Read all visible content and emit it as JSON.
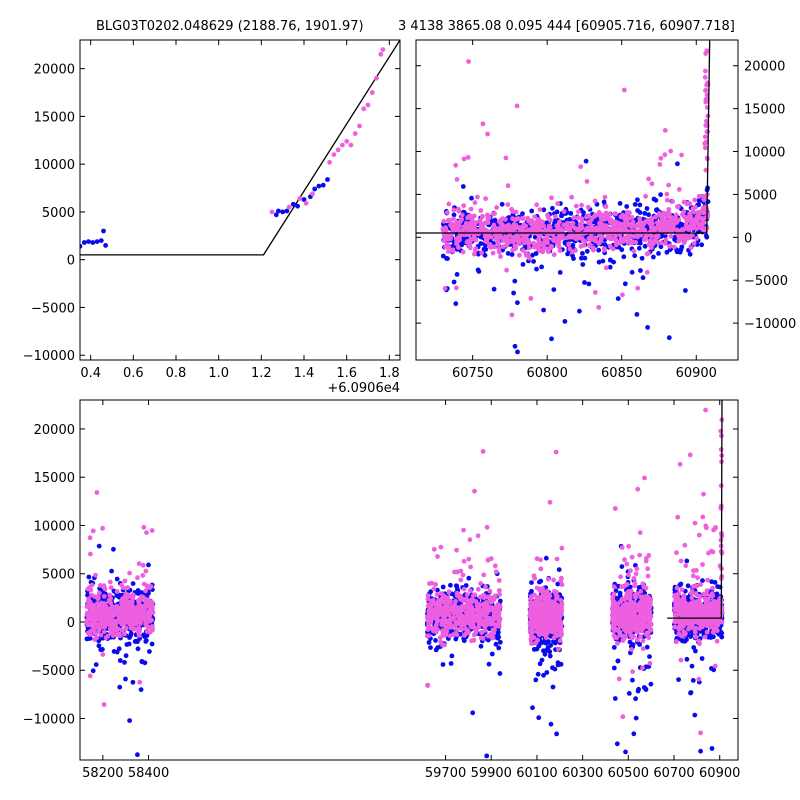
{
  "header": {
    "title_left": "BLG03T0202.048629 (2188.76, 1901.97)",
    "title_right": "3 4138 3865.08 0.095 444 [60905.716, 60907.718]"
  },
  "colors": {
    "series_a": "#0a0aee",
    "series_b": "#ee5fe0",
    "model": "#000000"
  },
  "chart_data": [
    {
      "type": "scatter",
      "name": "zoom-panel",
      "x_offset_label": "+6.0906e4",
      "xlim": [
        0.35,
        1.85
      ],
      "ylim": [
        -10500,
        23000
      ],
      "xticks": [
        0.4,
        0.6,
        0.8,
        1.0,
        1.2,
        1.4,
        1.6,
        1.8
      ],
      "xtick_labels": [
        "0.4",
        "0.6",
        "0.8",
        "1.0",
        "1.2",
        "1.4",
        "1.6",
        "1.8"
      ],
      "yticks": [
        -10000,
        -5000,
        0,
        5000,
        10000,
        15000,
        20000
      ],
      "ytick_labels": [
        "−10000",
        "−5000",
        "0",
        "5000",
        "10000",
        "15000",
        "20000"
      ],
      "series": [
        {
          "color_key": "series_a",
          "points": [
            [
              0.35,
              1400
            ],
            [
              0.37,
              1800
            ],
            [
              0.39,
              1900
            ],
            [
              0.41,
              1800
            ],
            [
              0.43,
              1900
            ],
            [
              0.45,
              2000
            ],
            [
              0.46,
              3000
            ],
            [
              0.47,
              1500
            ],
            [
              1.27,
              4700
            ],
            [
              1.28,
              5100
            ],
            [
              1.3,
              5000
            ],
            [
              1.32,
              5100
            ],
            [
              1.35,
              5800
            ],
            [
              1.37,
              5600
            ],
            [
              1.4,
              6300
            ],
            [
              1.43,
              6600
            ],
            [
              1.45,
              7400
            ],
            [
              1.47,
              7700
            ],
            [
              1.49,
              7800
            ],
            [
              1.51,
              8400
            ]
          ]
        },
        {
          "color_key": "series_b",
          "points": [
            [
              1.25,
              5000
            ],
            [
              1.33,
              5500
            ],
            [
              1.38,
              6400
            ],
            [
              1.41,
              5900
            ],
            [
              1.44,
              6900
            ],
            [
              1.52,
              10200
            ],
            [
              1.54,
              11000
            ],
            [
              1.56,
              11500
            ],
            [
              1.58,
              12000
            ],
            [
              1.6,
              12400
            ],
            [
              1.62,
              12000
            ],
            [
              1.64,
              13200
            ],
            [
              1.66,
              14000
            ],
            [
              1.68,
              15800
            ],
            [
              1.7,
              16200
            ],
            [
              1.72,
              17500
            ],
            [
              1.74,
              19000
            ],
            [
              1.76,
              21500
            ],
            [
              1.77,
              22000
            ]
          ]
        }
      ],
      "model": [
        [
          0.35,
          500
        ],
        [
          1.21,
          500
        ],
        [
          1.85,
          23000
        ]
      ]
    },
    {
      "type": "scatter",
      "name": "season-panel",
      "xlim": [
        60712,
        60928
      ],
      "ylim": [
        -14300,
        23000
      ],
      "xticks": [
        60750,
        60800,
        60850,
        60900
      ],
      "xtick_labels": [
        "60750",
        "60800",
        "60850",
        "60900"
      ],
      "yticks": [
        -10000,
        -5000,
        0,
        5000,
        10000,
        15000,
        20000
      ],
      "ytick_labels": [
        "−10000",
        "−5000",
        "0",
        "5000",
        "10000",
        "15000",
        "20000"
      ],
      "y_axis_side": "right",
      "clusters": [
        [
          60730,
          60910
        ]
      ],
      "cluster_centers": [
        [
          60725,
          0
        ],
        [
          60745,
          700
        ],
        [
          60760,
          600
        ],
        [
          60775,
          300
        ],
        [
          60790,
          400
        ],
        [
          60805,
          600
        ],
        [
          60820,
          700
        ],
        [
          60835,
          800
        ],
        [
          60850,
          900
        ],
        [
          60865,
          1000
        ],
        [
          60880,
          1000
        ],
        [
          60895,
          1200
        ],
        [
          60908,
          2500
        ]
      ],
      "model": [
        [
          60712,
          500
        ],
        [
          60907,
          500
        ],
        [
          60909,
          23000
        ]
      ]
    },
    {
      "type": "scatter",
      "name": "full-lightcurve-panel",
      "xlim": [
        58100,
        60980
      ],
      "ylim": [
        -14300,
        23000
      ],
      "xticks": [
        58200,
        58400,
        59700,
        59900,
        60100,
        60300,
        60500,
        60700,
        60900
      ],
      "xtick_labels": [
        "58200",
        "58400",
        "59700",
        "59900",
        "60100",
        "60300",
        "60500",
        "60700",
        "60900"
      ],
      "yticks": [
        -10000,
        -5000,
        0,
        5000,
        10000,
        15000,
        20000
      ],
      "ytick_labels": [
        "−10000",
        "−5000",
        "0",
        "5000",
        "10000",
        "15000",
        "20000"
      ],
      "segments": [
        {
          "from": 58130,
          "to": 58420,
          "center": 800
        },
        {
          "from": 59620,
          "to": 59940,
          "center": 700
        },
        {
          "from": 60070,
          "to": 60210,
          "center": 600
        },
        {
          "from": 60430,
          "to": 60600,
          "center": 700
        },
        {
          "from": 60700,
          "to": 60910,
          "center": 800
        }
      ],
      "model": [
        [
          60670,
          400
        ],
        [
          60907,
          400
        ],
        [
          60910,
          23000
        ]
      ]
    }
  ]
}
